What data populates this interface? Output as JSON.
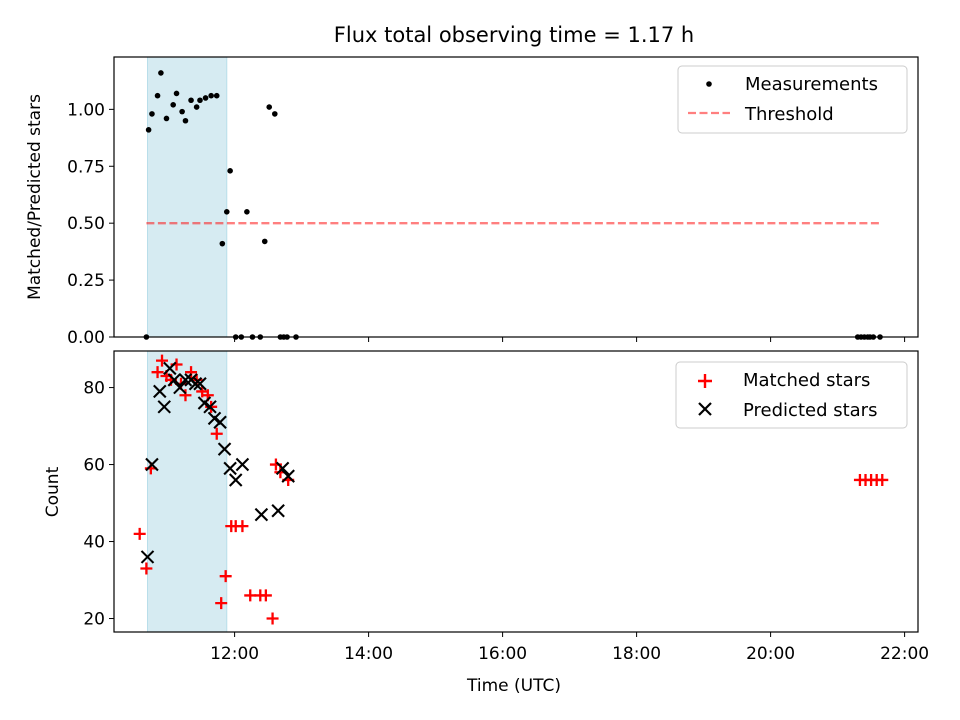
{
  "title": "Flux total observing time = 1.17 h",
  "colors": {
    "highlight": "#add8e6",
    "threshold": "#ff0000",
    "matched": "#ff0000",
    "predicted": "#000000",
    "measurements": "#000000"
  },
  "highlight_span": [
    "10:42",
    "11:53"
  ],
  "chart_data": [
    {
      "type": "scatter",
      "ylabel": "Matched/Predicted stars",
      "xlim": [
        "10:12",
        "22:12"
      ],
      "ylim": [
        0,
        1.23
      ],
      "yticks": [
        "0.00",
        "0.25",
        "0.50",
        "0.75",
        "1.00"
      ],
      "ytick_values": [
        0,
        0.25,
        0.5,
        0.75,
        1.0
      ],
      "legend": {
        "position": "upper right",
        "entries": [
          "Measurements",
          "Threshold"
        ]
      },
      "threshold": {
        "name": "Threshold",
        "x": [
          "10:41",
          "21:38"
        ],
        "y": 0.5
      },
      "series": [
        {
          "name": "Measurements",
          "x": [
            "10:41",
            "10:43",
            "10:46",
            "10:51",
            "10:54",
            "10:59",
            "11:05",
            "11:08",
            "11:13",
            "11:16",
            "11:21",
            "11:26",
            "11:29",
            "11:34",
            "11:39",
            "11:44",
            "11:49",
            "11:53",
            "11:56",
            "12:01",
            "12:06",
            "12:11",
            "12:16",
            "12:23",
            "12:27",
            "12:31",
            "12:36",
            "12:41",
            "12:44",
            "12:47",
            "12:55",
            "21:18",
            "21:21",
            "21:24",
            "21:27",
            "21:29",
            "21:32",
            "21:38"
          ],
          "y": [
            0,
            0.91,
            0.98,
            1.06,
            1.16,
            0.96,
            1.02,
            1.07,
            0.99,
            0.95,
            1.04,
            1.01,
            1.04,
            1.05,
            1.06,
            1.06,
            0.41,
            0.55,
            0.73,
            0,
            0,
            0.55,
            0,
            0,
            0.42,
            1.01,
            0.98,
            0,
            0,
            0,
            0,
            0,
            0,
            0,
            0,
            0,
            0,
            0
          ]
        }
      ]
    },
    {
      "type": "scatter",
      "xlabel": "Time (UTC)",
      "ylabel": "Count",
      "xlim": [
        "10:12",
        "22:12"
      ],
      "ylim": [
        16.5,
        89.5
      ],
      "xticks": [
        "12:00",
        "14:00",
        "16:00",
        "18:00",
        "20:00",
        "22:00"
      ],
      "yticks": [
        "20",
        "40",
        "60",
        "80"
      ],
      "ytick_values": [
        20,
        40,
        60,
        80
      ],
      "legend": {
        "position": "upper right",
        "entries": [
          "Matched stars",
          "Predicted stars"
        ]
      },
      "series": [
        {
          "name": "Matched stars",
          "x": [
            "10:35",
            "10:41",
            "10:45",
            "10:51",
            "10:55",
            "10:59",
            "11:03",
            "11:08",
            "11:12",
            "11:16",
            "11:21",
            "11:26",
            "11:31",
            "11:36",
            "11:39",
            "11:44",
            "11:48",
            "11:52",
            "11:57",
            "12:01",
            "12:07",
            "12:14",
            "12:23",
            "12:28",
            "12:34",
            "12:37",
            "12:41",
            "12:48",
            "21:20",
            "21:25",
            "21:30",
            "21:35",
            "21:40"
          ],
          "y": [
            42,
            33,
            59,
            84,
            87,
            83,
            82,
            86,
            81,
            78,
            84,
            82,
            79,
            78,
            75,
            68,
            24,
            31,
            44,
            44,
            44,
            26,
            26,
            26,
            20,
            60,
            58,
            56,
            56,
            56,
            56,
            56,
            56
          ]
        },
        {
          "name": "Predicted stars",
          "x": [
            "10:42",
            "10:46",
            "10:53",
            "10:57",
            "11:02",
            "11:06",
            "11:11",
            "11:16",
            "11:21",
            "11:25",
            "11:29",
            "11:33",
            "11:38",
            "11:42",
            "11:47",
            "11:51",
            "11:56",
            "12:01",
            "12:07",
            "12:24",
            "12:39",
            "12:43",
            "12:48"
          ],
          "y": [
            36,
            60,
            79,
            75,
            85,
            82,
            80,
            82,
            82,
            81,
            81,
            76,
            75,
            72,
            71,
            64,
            59,
            56,
            60,
            47,
            48,
            59,
            57
          ]
        }
      ]
    }
  ]
}
